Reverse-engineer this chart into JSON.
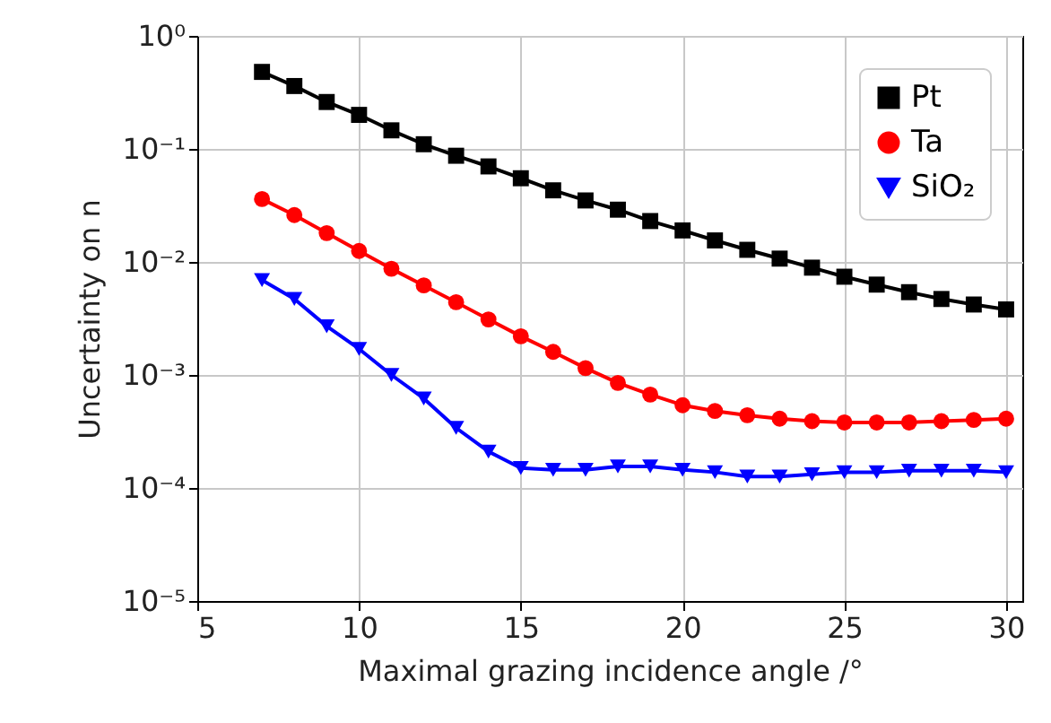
{
  "chart_data": {
    "type": "line",
    "xlabel": "Maximal grazing incidence angle /°",
    "ylabel": "Uncertainty on n",
    "x": [
      7,
      8,
      9,
      10,
      11,
      12,
      13,
      14,
      15,
      16,
      17,
      18,
      19,
      20,
      21,
      22,
      23,
      24,
      25,
      26,
      27,
      28,
      29,
      30
    ],
    "series": [
      {
        "name": "Pt",
        "color": "#000000",
        "marker": "square",
        "values": [
          0.48,
          0.36,
          0.26,
          0.2,
          0.146,
          0.11,
          0.087,
          0.07,
          0.055,
          0.043,
          0.035,
          0.029,
          0.023,
          0.019,
          0.0155,
          0.0128,
          0.0107,
          0.0089,
          0.0074,
          0.0063,
          0.0054,
          0.0047,
          0.0042,
          0.0038
        ]
      },
      {
        "name": "Ta",
        "color": "#ff0000",
        "marker": "circle",
        "values": [
          0.036,
          0.026,
          0.018,
          0.0125,
          0.0087,
          0.0062,
          0.0044,
          0.0031,
          0.0022,
          0.0016,
          0.00115,
          0.00085,
          0.00067,
          0.00054,
          0.00048,
          0.00044,
          0.00041,
          0.00039,
          0.00038,
          0.00038,
          0.00038,
          0.00039,
          0.0004,
          0.00041
        ]
      },
      {
        "name": "SiO₂",
        "color": "#0000ff",
        "marker": "triangle-down",
        "values": [
          0.0069,
          0.0047,
          0.0027,
          0.0017,
          0.001,
          0.00062,
          0.00034,
          0.00021,
          0.00015,
          0.000145,
          0.000145,
          0.000155,
          0.000155,
          0.000145,
          0.000138,
          0.000126,
          0.000126,
          0.000132,
          0.000138,
          0.000138,
          0.000142,
          0.000142,
          0.000142,
          0.000138
        ]
      }
    ],
    "log": "y",
    "grid": true,
    "legend": "top right",
    "line_style": "solid",
    "xlim": [
      5,
      30.5
    ],
    "xticks": [
      5,
      10,
      15,
      20,
      25,
      30
    ],
    "ylim": [
      1e-05,
      1
    ],
    "yticks": [
      {
        "value": 1e-05,
        "label": "10⁻⁵"
      },
      {
        "value": 0.0001,
        "label": "10⁻⁴"
      },
      {
        "value": 0.001,
        "label": "10⁻³"
      },
      {
        "value": 0.01,
        "label": "10⁻²"
      },
      {
        "value": 0.1,
        "label": "10⁻¹"
      },
      {
        "value": 1,
        "label": "10⁰"
      }
    ]
  }
}
